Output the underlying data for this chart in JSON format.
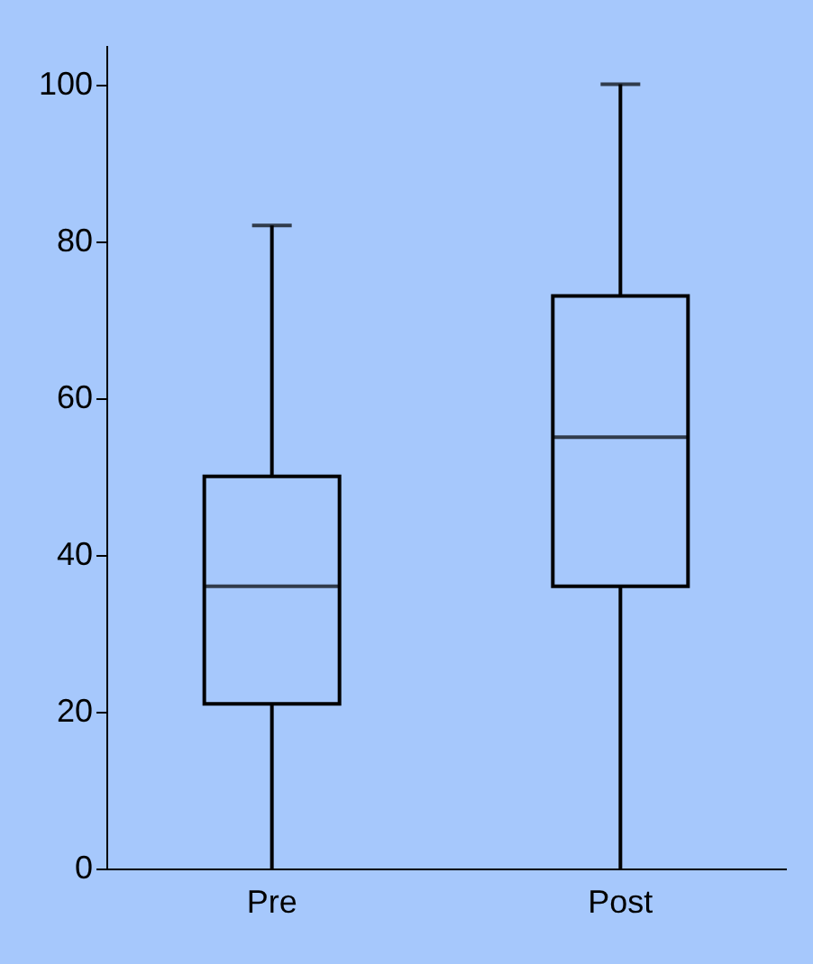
{
  "chart_data": {
    "type": "box",
    "categories": [
      "Pre",
      "Post"
    ],
    "boxes": [
      {
        "low": 0,
        "q1": 21,
        "median": 36,
        "q3": 50,
        "high": 82
      },
      {
        "low": 0,
        "q1": 36,
        "median": 55,
        "q3": 73,
        "high": 100
      }
    ],
    "ylim": [
      0,
      105
    ],
    "yticks": [
      0,
      20,
      40,
      60,
      80,
      100
    ],
    "grid": false
  }
}
